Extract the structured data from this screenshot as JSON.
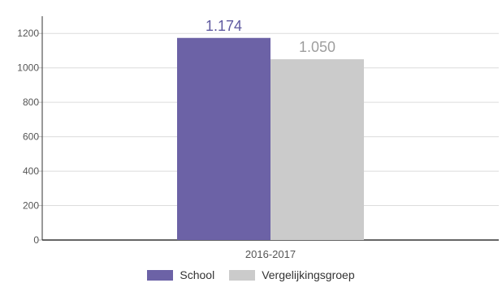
{
  "chart_data": {
    "type": "bar",
    "categories": [
      "2016-2017"
    ],
    "series": [
      {
        "name": "School",
        "values": [
          1174
        ],
        "value_label": "1.174",
        "color": "#6c62a6"
      },
      {
        "name": "Vergelijkingsgroep",
        "values": [
          1050
        ],
        "value_label": "1.050",
        "color": "#cbcbcb"
      }
    ],
    "title": "",
    "xlabel": "",
    "ylabel": "",
    "ylim": [
      0,
      1300
    ],
    "yticks": [
      0,
      200,
      400,
      600,
      800,
      1000,
      1200
    ],
    "grid": true,
    "legend_position": "bottom-center",
    "value_label_colors": [
      "#5f5aa0",
      "#9e9e9e"
    ]
  }
}
